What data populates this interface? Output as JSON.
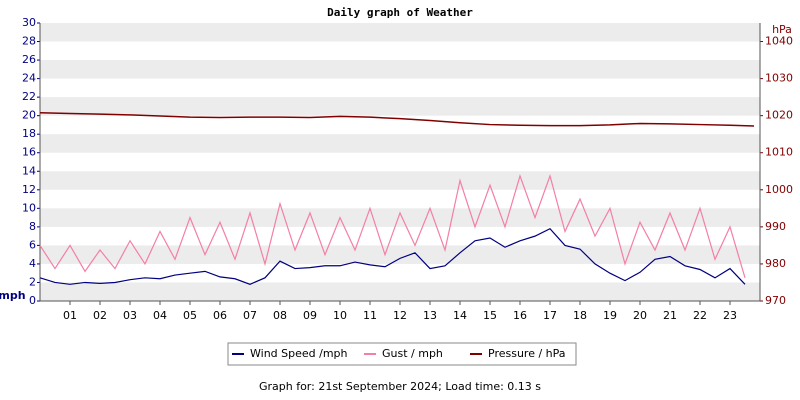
{
  "chart_data": {
    "type": "line",
    "title": "Daily graph of Weather",
    "ylabel": "mph",
    "y2label": "hPa",
    "footer": "Graph for: 21st September 2024; Load time: 0.13 s",
    "xlim": [
      0,
      24
    ],
    "xticks": [
      {
        "value": 1,
        "label": "01"
      },
      {
        "value": 2,
        "label": "02"
      },
      {
        "value": 3,
        "label": "03"
      },
      {
        "value": 4,
        "label": "04"
      },
      {
        "value": 5,
        "label": "05"
      },
      {
        "value": 6,
        "label": "06"
      },
      {
        "value": 7,
        "label": "07"
      },
      {
        "value": 8,
        "label": "08"
      },
      {
        "value": 9,
        "label": "09"
      },
      10,
      11,
      12,
      13,
      14,
      15,
      16,
      17,
      18,
      19,
      20,
      21,
      22,
      23
    ],
    "ylim": [
      0,
      30
    ],
    "yticks": [
      0,
      2,
      4,
      6,
      8,
      10,
      12,
      14,
      16,
      18,
      20,
      22,
      24,
      26,
      28,
      30
    ],
    "y2lim": [
      970,
      1045
    ],
    "y2ticks": [
      970,
      980,
      990,
      1000,
      1010,
      1020,
      1030,
      1040
    ],
    "grid": true,
    "series": [
      {
        "name": "Wind Speed /mph",
        "color": "#000080",
        "x": [
          0,
          0.5,
          1,
          1.5,
          2,
          2.5,
          3,
          3.5,
          4,
          4.5,
          5,
          5.5,
          6,
          6.5,
          7,
          7.5,
          8,
          8.5,
          9,
          9.5,
          10,
          10.5,
          11,
          11.5,
          12,
          12.5,
          13,
          13.5,
          14,
          14.5,
          15,
          15.5,
          16,
          16.5,
          17,
          17.5,
          18,
          18.5,
          19,
          19.5,
          20,
          20.5,
          21,
          21.5,
          22,
          22.5,
          23,
          23.5
        ],
        "values": [
          2.5,
          2,
          1.8,
          2,
          1.9,
          2,
          2.3,
          2.5,
          2.4,
          2.8,
          3,
          3.2,
          2.6,
          2.4,
          1.8,
          2.5,
          4.3,
          3.5,
          3.6,
          3.8,
          3.8,
          4.2,
          3.9,
          3.7,
          4.6,
          5.2,
          3.5,
          3.8,
          5.2,
          6.5,
          6.8,
          5.8,
          6.5,
          7,
          7.8,
          6,
          5.6,
          4,
          3,
          2.2,
          3.1,
          4.5,
          4.8,
          3.8,
          3.4,
          2.5,
          3.5,
          1.8
        ]
      },
      {
        "name": "Gust / mph",
        "color": "#f47fa4",
        "x": [
          0,
          0.5,
          1,
          1.5,
          2,
          2.5,
          3,
          3.5,
          4,
          4.5,
          5,
          5.5,
          6,
          6.5,
          7,
          7.5,
          8,
          8.5,
          9,
          9.5,
          10,
          10.5,
          11,
          11.5,
          12,
          12.5,
          13,
          13.5,
          14,
          14.5,
          15,
          15.5,
          16,
          16.5,
          17,
          17.5,
          18,
          18.5,
          19,
          19.5,
          20,
          20.5,
          21,
          21.5,
          22,
          22.5,
          23,
          23.5
        ],
        "values": [
          6,
          3.5,
          6,
          3.2,
          5.5,
          3.5,
          6.5,
          4,
          7.5,
          4.5,
          9,
          5,
          8.5,
          4.5,
          9.5,
          4,
          10.5,
          5.5,
          9.5,
          5,
          9,
          5.5,
          10,
          5,
          9.5,
          6,
          10,
          5.5,
          13,
          8,
          12.5,
          8,
          13.5,
          9,
          13.5,
          7.5,
          11,
          7,
          10,
          4,
          8.5,
          5.5,
          9.5,
          5.5,
          10,
          4.5,
          8,
          2.5
        ]
      },
      {
        "name": "Pressure / hPa",
        "color": "#800000",
        "axis": "y2",
        "x": [
          0,
          1,
          2,
          3,
          4,
          5,
          6,
          7,
          8,
          9,
          10,
          11,
          12,
          13,
          14,
          15,
          16,
          17,
          18,
          19,
          20,
          21,
          22,
          23,
          23.8
        ],
        "values": [
          1020.8,
          1020.6,
          1020.4,
          1020.2,
          1019.9,
          1019.6,
          1019.5,
          1019.6,
          1019.6,
          1019.5,
          1019.8,
          1019.6,
          1019.2,
          1018.7,
          1018.1,
          1017.6,
          1017.4,
          1017.3,
          1017.3,
          1017.5,
          1017.9,
          1017.8,
          1017.6,
          1017.4,
          1017.2
        ]
      }
    ]
  }
}
